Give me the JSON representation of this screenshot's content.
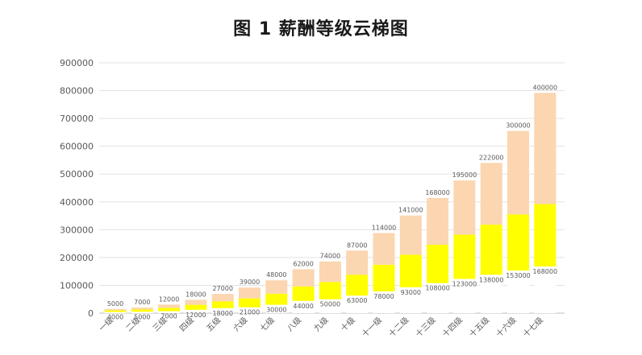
{
  "chart_data": {
    "type": "bar",
    "stacked": true,
    "title": "图 1  薪酬等级云梯图",
    "xlabel": "",
    "ylabel": "",
    "ylim": [
      0,
      900000
    ],
    "yticks": [
      0,
      100000,
      200000,
      300000,
      400000,
      500000,
      600000,
      700000,
      800000,
      900000
    ],
    "grid": true,
    "categories": [
      "一级",
      "二级",
      "三级",
      "四级",
      "五级",
      "六级",
      "七级",
      "八级",
      "九级",
      "十级",
      "十一级",
      "十二级",
      "十三级",
      "十四级",
      "十五级",
      "十六级",
      "十七级"
    ],
    "min_labels": [
      4000,
      5000,
      7000,
      12000,
      18000,
      21000,
      30000,
      44000,
      50000,
      63000,
      78000,
      93000,
      108000,
      123000,
      138000,
      153000,
      168000
    ],
    "max_labels": [
      5000,
      7000,
      12000,
      18000,
      27000,
      39000,
      48000,
      62000,
      74000,
      87000,
      114000,
      141000,
      168000,
      195000,
      222000,
      300000,
      400000
    ],
    "series": [
      {
        "name": "base",
        "color": "#ffffff",
        "values": [
          4000,
          5000,
          7000,
          12000,
          18000,
          21000,
          30000,
          44000,
          50000,
          63000,
          78000,
          93000,
          108000,
          123000,
          138000,
          153000,
          168000
        ]
      },
      {
        "name": "lower-band",
        "color": "#ffff00",
        "values": [
          6000,
          8000,
          12000,
          18000,
          24000,
          32000,
          40000,
          52000,
          62000,
          75000,
          96000,
          117000,
          138000,
          159000,
          180000,
          202000,
          224000
        ]
      },
      {
        "name": "upper-band",
        "color": "#fbd6b0",
        "values": [
          5000,
          7000,
          12000,
          18000,
          27000,
          39000,
          48000,
          62000,
          74000,
          87000,
          114000,
          141000,
          168000,
          195000,
          222000,
          300000,
          400000
        ]
      }
    ]
  }
}
